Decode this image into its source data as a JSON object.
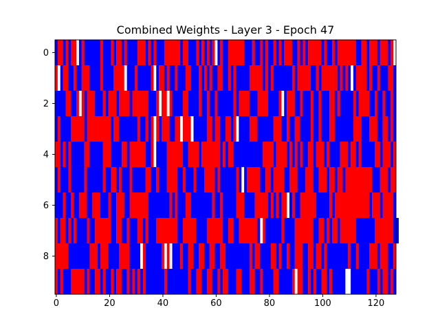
{
  "chart_data": {
    "type": "heatmap",
    "title": "Combined Weights - Layer 3 - Epoch 47",
    "xlabel": "",
    "ylabel": "",
    "n_cols": 128,
    "n_rows": 10,
    "xlim": [
      -0.5,
      127.5
    ],
    "ylim": [
      9.5,
      -0.5
    ],
    "x_ticks": [
      0,
      20,
      40,
      60,
      80,
      100,
      120
    ],
    "y_ticks": [
      0,
      2,
      4,
      6,
      8
    ],
    "value_encoding": {
      "R": 1,
      "B": -1,
      "W": 0
    },
    "colors": {
      "R": "#ff0000",
      "B": "#0000ff",
      "W": "#ffffff"
    },
    "rows": [
      "BRRBRBRRWBRBBBBBBRBBBRBRRBRBBBBRRRBRBRBBBRRRRRRBRRBBBRBRBRBRWBRBBRRRRRRBBBRBBRBRBBRBRBRRRBBRBRBRRRRRBRBBRBRRRRRRRBBRRBRRRBRRRBR",
      "RWBRRBBRBBRRRBBBBRBBBBRRRRWBBBRBBBBBRWBRRBRBBRBBBRRBBBRBRBRBBRRBBRBRBBBBBRRRRRBRBRBBBBBBBRBRRRRRBBRBRRRRRRBRBRBWBRRRRBRBBRBBBRRB",
      "BBBBRRBBRWRBRRRBBBRBRRRBRRRRBRRRRRRBBBRWRRWRBBBBRRBBBBRBBRBBRBBBBBBRBRRRRBBBRRRRBBBBRWBRRRBBRBBBRBBRBBBRRBRBBBBBRBRRRRBBRBBRBBRB",
      "BRBBBBRRRRRBRRRRRRRRRBRRBBBBBBBRBBRBRWRBRRRBBRRWRRRWBBBBBRRBRRBBRRBRWBBBBRRRBBBBBBRRRBBRBBRRBBBBRBBRBBBRRBBBBBBBRRRBBBRRRBBRRBRB",
      "RRBRBRBBBBBRRBBBBBRRRBBBBRRBRRRRRRBBRWBBBBRRRRRRBBRRRRBRRRRRRRBRBRRBBBBBBBBBBBRRRRBRRRRBRBRBRBBRRBRRRBRBBBBRRRBRRBRBBBBBRRBRRRBR",
      "BRBBBRBBBBBRBBBBBBRBBRRBRBBBRBBBBBRRBBRBBBRRRRBBRBBBRBBBRRRRBRBBBBBBRBWBRRRRRBBRRBRRRRBBRRRBBBRRRBBRRRBRRBRRBRRRRRRRRRRBBBRRRBRR",
      "BBBRBBRBBRRRBBRRRBBBRBBRRRBBRRRRRRRBBBBBBBBRBRBBBRRBBBBBBBBRBBRBBBBBRRRBBBBRRRRRBRBRBRRWBRBBRRRRRRBBBBBRBRRRRRRRRRRRRRBRRRBRRRRB",
      "RBRRBRBRBBBBRBBRRRRRRBBRRBBRBBBRRBRBBBRRRRRRRRBBRRRRRBBBBRRRRRRBBRRBBRRRRRRRBWRBBBBBBRBBBBRRRRRRRBBRRBRBRRBRRRRRRBBBBBBBRRRRRRRBB",
      "RRRRRBBBBBBBBRRRBRRRBBBBRRRRBBBBWRBBBBBBRWRWBBBRBBRRBBRRBBRRBBRRBBBBBBBBBRBRRBBBBRRBRBBRBBRRRBBRRBRRBRBBBBBBBBRBBRBBBBRRRBRRRBBR",
      "RBRBBBRRRRRBRBBRRBRBBRBRRBBRBRBRBRBBBBBBBRBBBBBBBBRBBRRBBRRBBRBRRBBBRRBBBRRBBRBBBBRRBBBBBRWRRBBRBRBBRRBRBBBBBWWBBBBBBRBBBRBRRBRB"
    ]
  }
}
